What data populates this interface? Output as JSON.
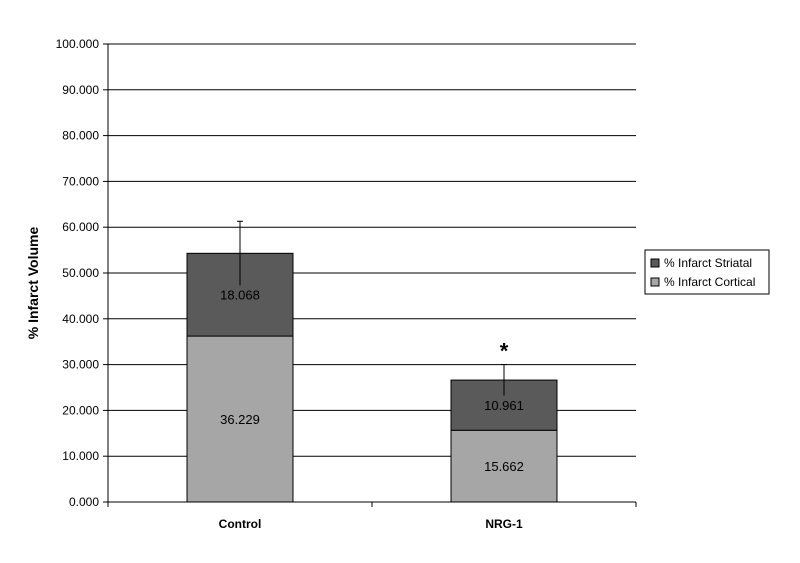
{
  "chart_data": {
    "type": "bar",
    "stacked": true,
    "categories": [
      "Control",
      "NRG-1"
    ],
    "series": [
      {
        "name": "% Infarct Cortical",
        "values": [
          36.229,
          15.662
        ],
        "color": "#a6a6a6"
      },
      {
        "name": "% Infarct Striatal",
        "values": [
          18.068,
          10.961
        ],
        "color": "#5a5a5a"
      }
    ],
    "data_labels": [
      [
        "36.229",
        "15.662"
      ],
      [
        "18.068",
        "10.961"
      ]
    ],
    "error_bars": [
      7.0,
      3.4
    ],
    "significance": [
      "",
      "*"
    ],
    "ylabel": "% Infarct Volume",
    "xlabel": "",
    "title": "",
    "ylim": [
      0,
      100
    ],
    "yticks": [
      0,
      10,
      20,
      30,
      40,
      50,
      60,
      70,
      80,
      90,
      100
    ],
    "ytick_labels": [
      "0.000",
      "10.000",
      "20.000",
      "30.000",
      "40.000",
      "50.000",
      "60.000",
      "70.000",
      "80.000",
      "90.000",
      "100.000"
    ],
    "grid": true,
    "legend_position": "right",
    "legend_order": [
      "% Infarct Striatal",
      "% Infarct Cortical"
    ]
  }
}
